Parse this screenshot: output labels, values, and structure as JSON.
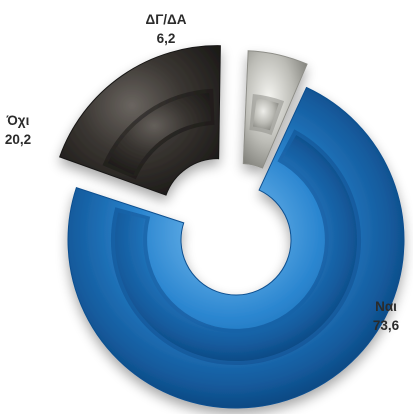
{
  "chart_data": {
    "type": "pie",
    "style": "exploded 3D donut",
    "slices": [
      {
        "category": "Ναι",
        "value_label": "73,6",
        "value": 73.6,
        "color": "#1a6fb8"
      },
      {
        "category": "Όχι",
        "value_label": "20,2",
        "value": 20.2,
        "color": "#2f2b28"
      },
      {
        "category": "ΔΓ/ΔΑ",
        "value_label": "6,2",
        "value": 6.2,
        "color": "#b9b9b4"
      }
    ]
  }
}
